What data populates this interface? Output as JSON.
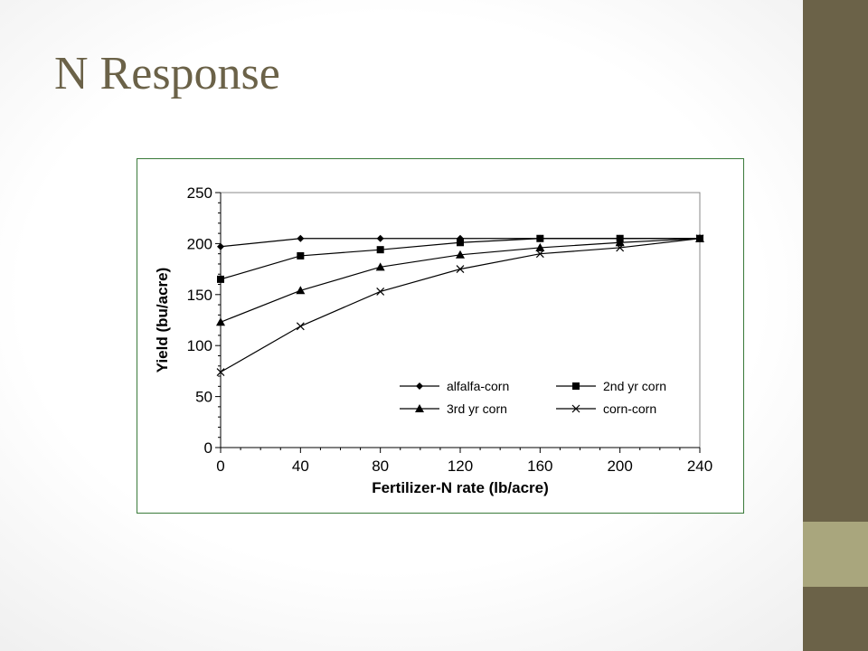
{
  "slide": {
    "title": "N Response",
    "accent_dark": "#6b6248",
    "accent_light": "#a9a67d"
  },
  "chart_data": {
    "type": "line",
    "x": [
      0,
      40,
      80,
      120,
      160,
      200,
      240
    ],
    "xlabel": "Fertilizer-N rate (lb/acre)",
    "ylabel": "Yield (bu/acre)",
    "xlim": [
      0,
      240
    ],
    "ylim": [
      0,
      250
    ],
    "xticks": [
      0,
      40,
      80,
      120,
      160,
      200,
      240
    ],
    "yticks": [
      0,
      50,
      100,
      150,
      200,
      250
    ],
    "grid": false,
    "legend_position": "lower-right, inside plot",
    "series": [
      {
        "name": "alfalfa-corn",
        "marker": "diamond",
        "values": [
          197,
          205,
          205,
          205,
          205,
          205,
          205
        ]
      },
      {
        "name": "2nd yr corn",
        "marker": "square",
        "values": [
          165,
          188,
          194,
          201,
          205,
          205,
          205
        ]
      },
      {
        "name": "3rd yr corn",
        "marker": "triangle",
        "values": [
          123,
          154,
          177,
          189,
          196,
          201,
          205
        ]
      },
      {
        "name": "corn-corn",
        "marker": "x",
        "values": [
          74,
          119,
          153,
          175,
          190,
          196,
          205
        ]
      }
    ]
  }
}
